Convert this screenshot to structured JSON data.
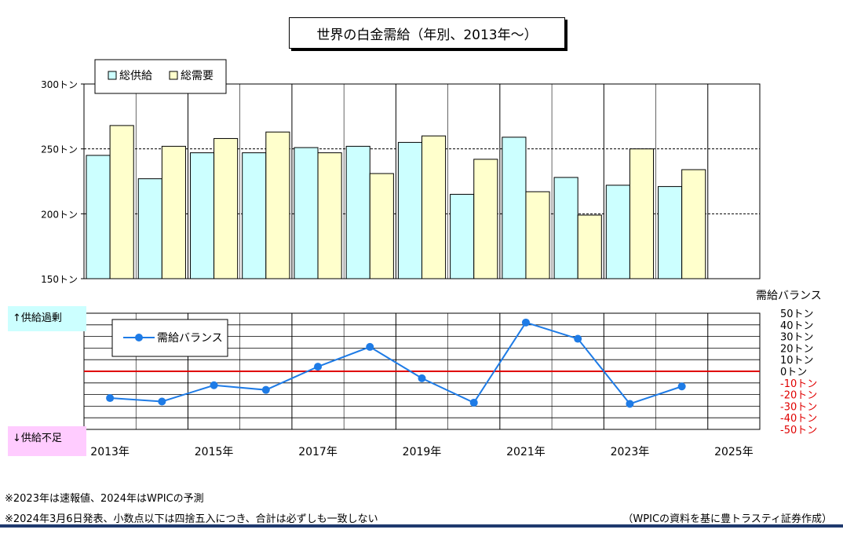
{
  "title": "世界の白金需給（年別、2013年〜）",
  "colors": {
    "supply": "#ccffff",
    "demand": "#ffffcc",
    "balance": "#1e7be6",
    "zero_line": "#e00000",
    "negative_tick": "#e00000"
  },
  "chart_data": [
    {
      "type": "bar",
      "categories": [
        "2013",
        "2014",
        "2015",
        "2016",
        "2017",
        "2018",
        "2019",
        "2020",
        "2021",
        "2022",
        "2023",
        "2024",
        "2025"
      ],
      "series": [
        {
          "name": "総供給",
          "values": [
            245,
            227,
            247,
            247,
            251,
            252,
            255,
            215,
            259,
            228,
            222,
            221,
            null
          ]
        },
        {
          "name": "総需要",
          "values": [
            268,
            252,
            258,
            263,
            247,
            231,
            260,
            242,
            217,
            199,
            250,
            234,
            null
          ]
        }
      ],
      "ylim": [
        150,
        300
      ],
      "yticks": [
        "150トン",
        "200トン",
        "250トン",
        "300トン"
      ],
      "legend_position": "top-left"
    },
    {
      "type": "line",
      "categories": [
        "2013",
        "2014",
        "2015",
        "2016",
        "2017",
        "2018",
        "2019",
        "2020",
        "2021",
        "2022",
        "2023",
        "2024",
        "2025"
      ],
      "series": [
        {
          "name": "需給バランス",
          "values": [
            -23,
            -26,
            -12,
            -16,
            4,
            21,
            -6,
            -27,
            42,
            28,
            -28,
            -13,
            null
          ]
        }
      ],
      "ylabel": "需給バランス",
      "ylim": [
        -50,
        50
      ],
      "yticks": [
        "50トン",
        "40トン",
        "30トン",
        "20トン",
        "10トン",
        "0トン",
        "-10トン",
        "-20トン",
        "-30トン",
        "-40トン",
        "-50トン"
      ],
      "xticks": [
        "2013年",
        "2015年",
        "2017年",
        "2019年",
        "2021年",
        "2023年",
        "2025年"
      ],
      "legend_position": "top-left"
    }
  ],
  "labels": {
    "surplus": "↑供給過剰",
    "deficit": "↓供給不足"
  },
  "notes": [
    "※2023年は速報値、2024年はWPICの予測",
    "※2024年3月6日発表、小数点以下は四捨五入につき、合計は必ずしも一致しない"
  ],
  "credit": "（WPICの資料を基に豊トラスティ証券作成）"
}
